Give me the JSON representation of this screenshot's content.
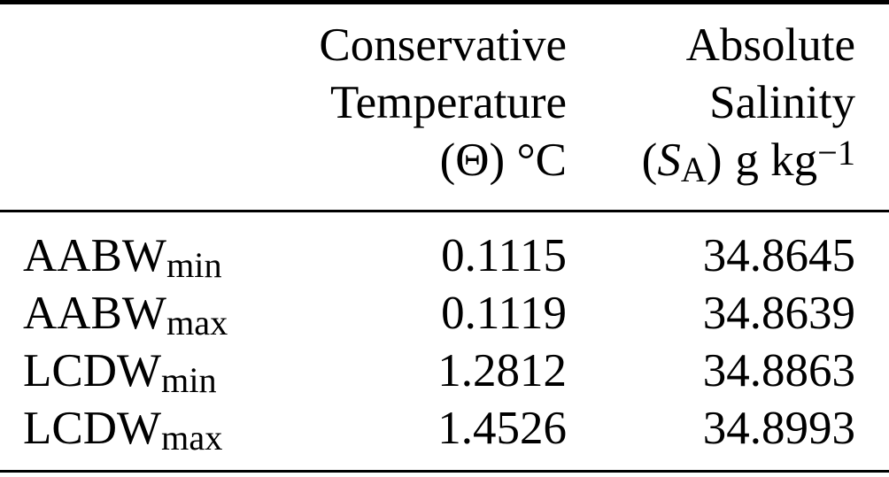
{
  "colors": {
    "background": "#ffffff",
    "text": "#000000",
    "rule": "#000000"
  },
  "table": {
    "header": {
      "col1": "",
      "col2": {
        "line1": "Conservative",
        "line2": "Temperature",
        "unit": "(Θ) °C"
      },
      "col3": {
        "line1": "Absolute",
        "line2": "Salinity",
        "unit": {
          "paren_open": "(",
          "symbol": "S",
          "subscript": "A",
          "paren_close": ")",
          "unit_text": "g kg",
          "superscript": "−1"
        }
      }
    },
    "rows": [
      {
        "label": "AABW",
        "label_subscript": "min",
        "conservative_temperature": "0.1115",
        "absolute_salinity": "34.8645"
      },
      {
        "label": "AABW",
        "label_subscript": "max",
        "conservative_temperature": "0.1119",
        "absolute_salinity": "34.8639"
      },
      {
        "label": "LCDW",
        "label_subscript": "min",
        "conservative_temperature": "1.2812",
        "absolute_salinity": "34.8863"
      },
      {
        "label": "LCDW",
        "label_subscript": "max",
        "conservative_temperature": "1.4526",
        "absolute_salinity": "34.8993"
      }
    ]
  },
  "chart_data": {
    "type": "table",
    "columns": [
      "",
      "Conservative Temperature (Θ) °C",
      "Absolute Salinity (S_A) g kg^−1"
    ],
    "rows": [
      [
        "AABW_min",
        0.1115,
        34.8645
      ],
      [
        "AABW_max",
        0.1119,
        34.8639
      ],
      [
        "LCDW_min",
        1.2812,
        34.8863
      ],
      [
        "LCDW_max",
        1.4526,
        34.8993
      ]
    ]
  }
}
